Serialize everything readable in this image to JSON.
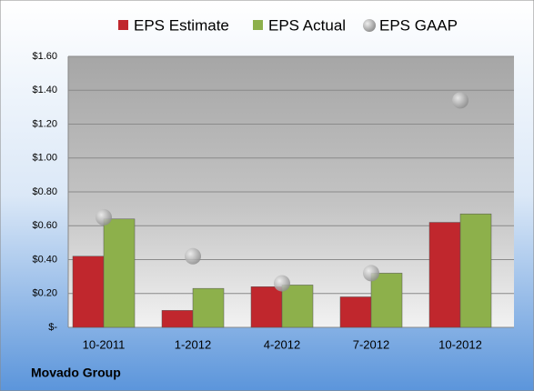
{
  "chart_data": {
    "type": "bar",
    "title": "Movado Group",
    "categories": [
      "10-2011",
      "1-2012",
      "4-2012",
      "7-2012",
      "10-2012"
    ],
    "series": [
      {
        "name": "EPS Estimate",
        "type": "bar",
        "color": "#c0272d",
        "values": [
          0.42,
          0.1,
          0.24,
          0.18,
          0.62
        ]
      },
      {
        "name": "EPS Actual",
        "type": "bar",
        "color": "#8db04b",
        "values": [
          0.64,
          0.23,
          0.25,
          0.32,
          0.67
        ]
      },
      {
        "name": "EPS GAAP",
        "type": "scatter",
        "color": "#a6a6a6",
        "values": [
          0.65,
          0.42,
          0.26,
          0.32,
          1.34
        ]
      }
    ],
    "ylim": [
      0,
      1.6
    ],
    "yticks": [
      {
        "value": 0,
        "label": "$-"
      },
      {
        "value": 0.2,
        "label": "$0.20"
      },
      {
        "value": 0.4,
        "label": "$0.40"
      },
      {
        "value": 0.6,
        "label": "$0.60"
      },
      {
        "value": 0.8,
        "label": "$0.80"
      },
      {
        "value": 1.0,
        "label": "$1.00"
      },
      {
        "value": 1.2,
        "label": "$1.20"
      },
      {
        "value": 1.4,
        "label": "$1.40"
      },
      {
        "value": 1.6,
        "label": "$1.60"
      }
    ],
    "grid": true,
    "legend": "top"
  }
}
